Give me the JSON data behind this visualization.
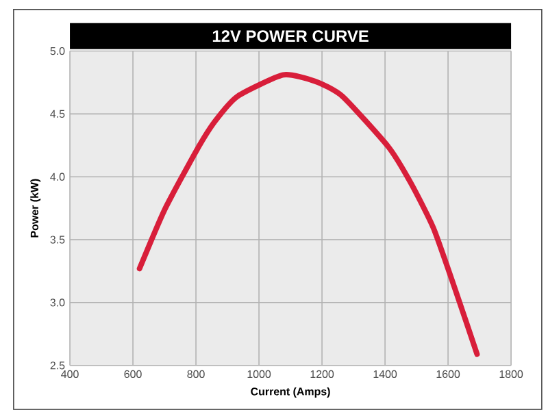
{
  "chart_data": {
    "type": "line",
    "title": "12V POWER CURVE",
    "xlabel": "Current (Amps)",
    "ylabel": "Power (kW)",
    "x": [
      621,
      701,
      802,
      860,
      932,
      1077,
      1178,
      1265,
      1410,
      1482,
      1554,
      1626,
      1692
    ],
    "values": [
      3.27,
      3.74,
      4.21,
      4.44,
      4.64,
      4.81,
      4.76,
      4.64,
      4.24,
      3.95,
      3.59,
      3.08,
      2.59
    ],
    "color": "#d81e3a",
    "xlim": [
      400,
      1800
    ],
    "ylim": [
      2.5,
      5.0
    ],
    "xticks": [
      400,
      600,
      800,
      1000,
      1200,
      1400,
      1600,
      1800
    ],
    "yticks": [
      {
        "value": 2.5,
        "label": "2.5"
      },
      {
        "value": 3.0,
        "label": "3.0"
      },
      {
        "value": 3.5,
        "label": "3.5"
      },
      {
        "value": 4.0,
        "label": "4.0"
      },
      {
        "value": 4.5,
        "label": "4.5"
      },
      {
        "value": 5.0,
        "label": "5.0"
      }
    ],
    "grid": true,
    "marker": "none",
    "line_style": "solid"
  }
}
